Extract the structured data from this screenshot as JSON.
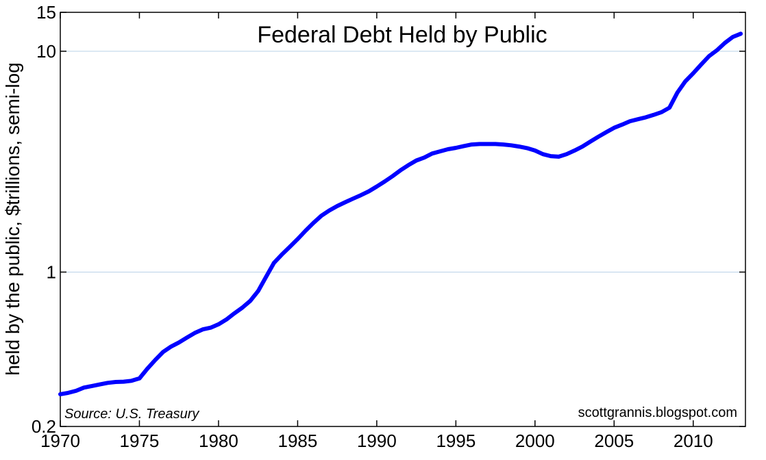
{
  "chart_data": {
    "type": "line",
    "title": "Federal Debt Held by Public",
    "ylabel": "held by the public, $trillions, semi-log",
    "xlabel": "",
    "yscale": "log",
    "xlim": [
      1970,
      2013.3
    ],
    "ylim": [
      0.2,
      15
    ],
    "grid": "horizontal",
    "xticks": [
      1970,
      1975,
      1980,
      1985,
      1990,
      1995,
      2000,
      2005,
      2010
    ],
    "xtick_labels": [
      "1970",
      "1975",
      "1980",
      "1985",
      "1990",
      "1995",
      "2000",
      "2005",
      "2010"
    ],
    "yticks": [
      0.2,
      1,
      10,
      15
    ],
    "ytick_labels": [
      "0.2",
      "1",
      "10",
      "15"
    ],
    "line_color": "#0000ff",
    "source": "Source:  U.S. Treasury",
    "credit": "scottgrannis.blogspot.com",
    "series": [
      {
        "x": [
          1970.0,
          1970.5,
          1971.0,
          1971.5,
          1972.0,
          1972.5,
          1973.0,
          1973.5,
          1974.0,
          1974.5,
          1975.0,
          1975.5,
          1976.0,
          1976.5,
          1977.0,
          1977.5,
          1978.0,
          1978.5,
          1979.0,
          1979.5,
          1980.0,
          1980.5,
          1981.0,
          1981.5,
          1982.0,
          1982.5,
          1983.0,
          1983.5,
          1984.0,
          1984.5,
          1985.0,
          1985.5,
          1986.0,
          1986.5,
          1987.0,
          1987.5,
          1988.0,
          1988.5,
          1989.0,
          1989.5,
          1990.0,
          1990.5,
          1991.0,
          1991.5,
          1992.0,
          1992.5,
          1993.0,
          1993.5,
          1994.0,
          1994.5,
          1995.0,
          1995.5,
          1996.0,
          1996.5,
          1997.0,
          1997.5,
          1998.0,
          1998.5,
          1999.0,
          1999.5,
          2000.0,
          2000.5,
          2001.0,
          2001.5,
          2002.0,
          2002.5,
          2003.0,
          2003.5,
          2004.0,
          2004.5,
          2005.0,
          2005.5,
          2006.0,
          2006.5,
          2007.0,
          2007.5,
          2008.0,
          2008.5,
          2009.0,
          2009.5,
          2010.0,
          2010.5,
          2011.0,
          2011.5,
          2012.0,
          2012.5,
          2013.0
        ],
        "values": [
          0.28,
          0.284,
          0.29,
          0.3,
          0.305,
          0.31,
          0.315,
          0.318,
          0.319,
          0.322,
          0.33,
          0.365,
          0.4,
          0.435,
          0.46,
          0.48,
          0.505,
          0.53,
          0.55,
          0.56,
          0.58,
          0.61,
          0.65,
          0.69,
          0.74,
          0.82,
          0.95,
          1.1,
          1.2,
          1.3,
          1.41,
          1.54,
          1.67,
          1.8,
          1.9,
          1.99,
          2.07,
          2.15,
          2.23,
          2.32,
          2.44,
          2.57,
          2.72,
          2.89,
          3.05,
          3.2,
          3.3,
          3.44,
          3.52,
          3.6,
          3.65,
          3.72,
          3.78,
          3.8,
          3.8,
          3.8,
          3.78,
          3.75,
          3.7,
          3.64,
          3.55,
          3.42,
          3.35,
          3.33,
          3.42,
          3.55,
          3.7,
          3.9,
          4.1,
          4.3,
          4.5,
          4.65,
          4.82,
          4.92,
          5.02,
          5.15,
          5.3,
          5.55,
          6.5,
          7.3,
          7.95,
          8.7,
          9.5,
          10.1,
          10.9,
          11.6,
          12.0
        ]
      }
    ]
  }
}
